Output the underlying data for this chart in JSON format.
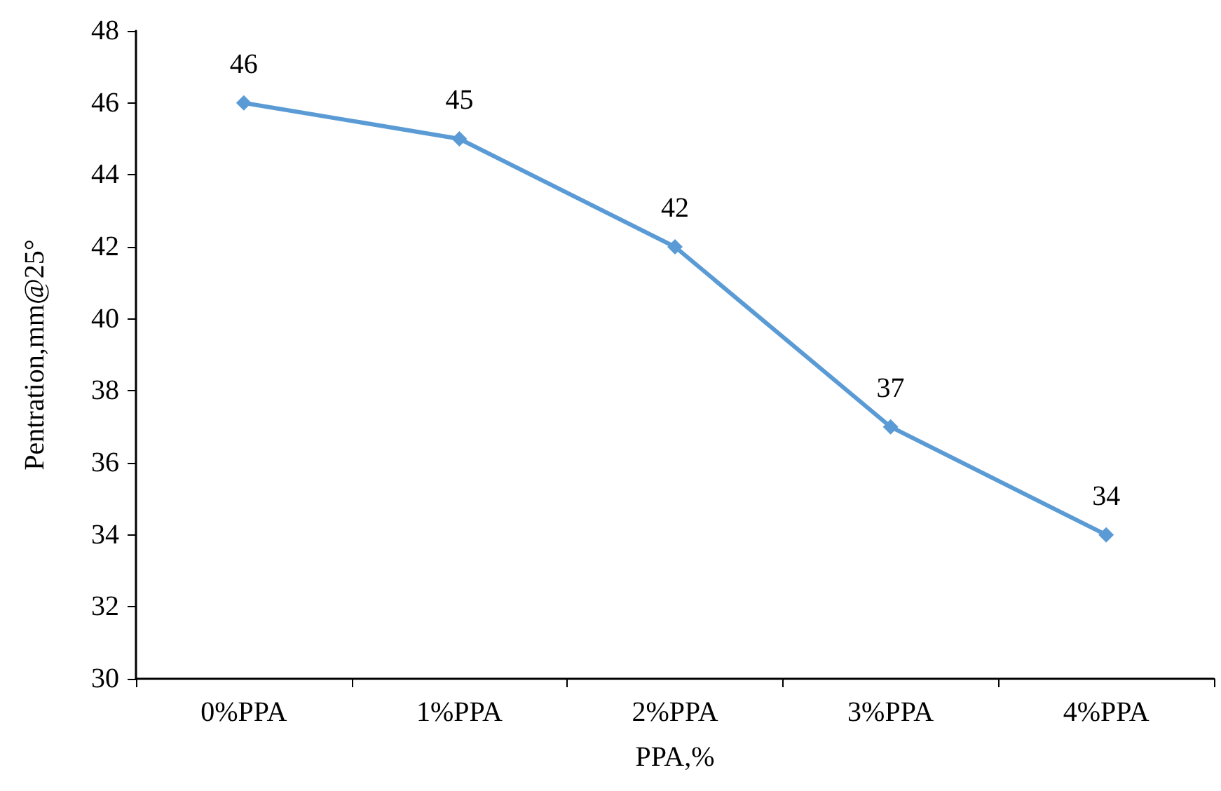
{
  "chart_data": {
    "type": "line",
    "xlabel": "PPA,%",
    "ylabel": "Pentration,mm@25°",
    "categories": [
      "0%PPA",
      "1%PPA",
      "2%PPA",
      "3%PPA",
      "4%PPA"
    ],
    "series": [
      {
        "color": "#5b9bd5",
        "values": [
          46,
          45,
          42,
          37,
          34
        ]
      }
    ],
    "ylim": [
      30,
      48
    ],
    "yticks": [
      30,
      32,
      34,
      36,
      38,
      40,
      42,
      44,
      46,
      48
    ],
    "data_labels": true,
    "grid": false,
    "marker": "diamond",
    "line_style": "solid"
  }
}
